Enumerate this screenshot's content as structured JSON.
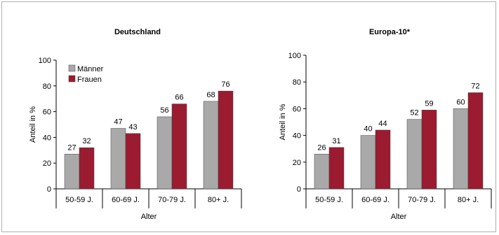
{
  "colors": {
    "maenner": "#a9a9a9",
    "frauen": "#9b1b30"
  },
  "chart_data": [
    {
      "type": "bar",
      "title": "Deutschland",
      "categories": [
        "50-59 J.",
        "60-69 J.",
        "70-79 J.",
        "80+ J."
      ],
      "series": [
        {
          "name": "Männer",
          "values": [
            27,
            47,
            56,
            68
          ]
        },
        {
          "name": "Frauen",
          "values": [
            32,
            43,
            66,
            76
          ]
        }
      ],
      "xlabel": "Alter",
      "ylabel": "Anteil in %",
      "ylim": [
        0,
        100
      ],
      "yticks": [
        "0",
        "20",
        "40",
        "60",
        "80",
        "100"
      ],
      "legend": "top-left",
      "grid": false
    },
    {
      "type": "bar",
      "title": "Europa-10*",
      "categories": [
        "50-59 J.",
        "60-69 J.",
        "70-79 J.",
        "80+ J."
      ],
      "series": [
        {
          "name": "",
          "values": [
            26,
            40,
            52,
            60
          ]
        },
        {
          "name": "",
          "values": [
            31,
            44,
            59,
            72
          ]
        }
      ],
      "xlabel": "Alter",
      "ylabel": "Anteil in %",
      "ylim": [
        0,
        100
      ],
      "yticks": [
        "0",
        "20",
        "40",
        "60",
        "80",
        "100"
      ],
      "legend": "none",
      "grid": false
    }
  ]
}
